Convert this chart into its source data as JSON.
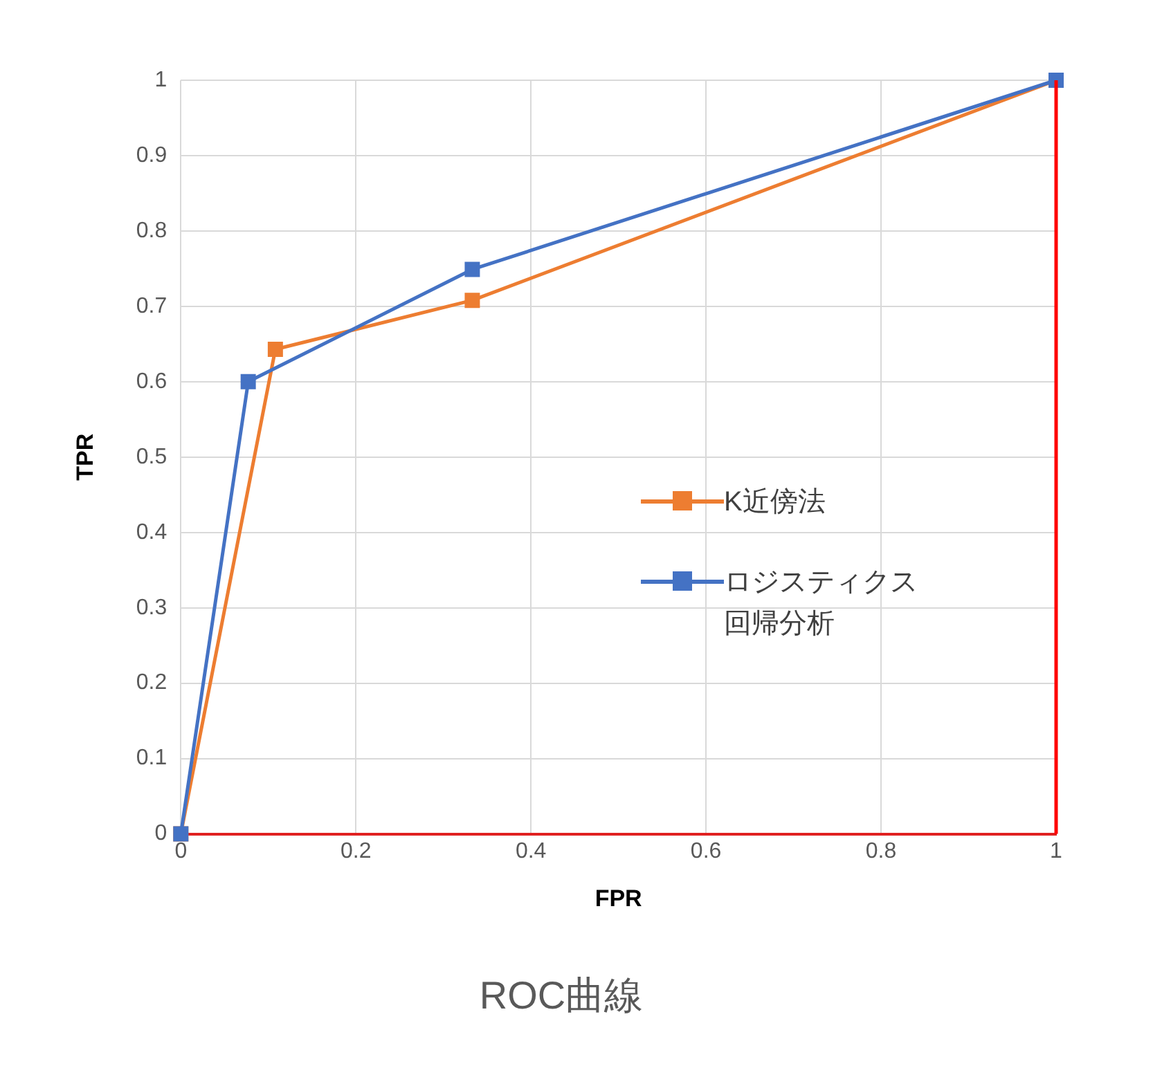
{
  "chart_data": {
    "type": "line",
    "title": "ROC曲線",
    "xlabel": "FPR",
    "ylabel": "TPR",
    "xlim": [
      0,
      1
    ],
    "ylim": [
      0,
      1
    ],
    "xticks": [
      0,
      0.2,
      0.4,
      0.6,
      0.8,
      1
    ],
    "yticks": [
      0,
      0.1,
      0.2,
      0.3,
      0.4,
      0.5,
      0.6,
      0.7,
      0.8,
      0.9,
      1
    ],
    "grid": true,
    "legend": "right",
    "marker": "square",
    "line_style": "solid",
    "series": [
      {
        "name": "K近傍法",
        "color": "#ed7d31",
        "x": [
          0,
          0.108,
          0.333,
          1
        ],
        "values": [
          0,
          0.643,
          0.708,
          1
        ]
      },
      {
        "name": "ロジスティクス回帰分析",
        "color": "#4472c4",
        "x": [
          0,
          0.077,
          0.333,
          1
        ],
        "values": [
          0,
          0.6,
          0.749,
          1
        ]
      }
    ],
    "ref_lines": [
      {
        "axis": "x",
        "value": 1,
        "color": "#ff0000"
      }
    ]
  }
}
